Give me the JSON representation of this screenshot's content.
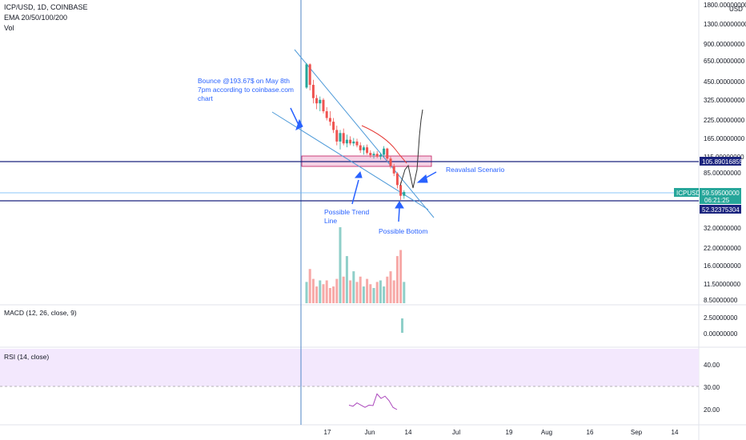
{
  "header": {
    "symbol_line": "ICP/USD, 1D, COINBASE",
    "ema_line": "EMA 20/50/100/200",
    "vol_line": "Vol"
  },
  "colors": {
    "up": "#26a69a",
    "down": "#ef5350",
    "vol_up": "#8fcfc9",
    "vol_down": "#f7a9a7",
    "annotation": "#2962ff",
    "ema": "#e53935",
    "rsi_band": "#f3e8fd",
    "rsi_line": "#ab47bc",
    "zone_fill": "#f3c6dd",
    "zone_border": "#c2185b"
  },
  "chart_data": {
    "type": "candlestick",
    "scale": "log",
    "x_ticks": [
      "17",
      "Jun",
      "14",
      "Jul",
      "19",
      "Aug",
      "16",
      "Sep",
      "14"
    ],
    "price_ticks": [
      "1800.00000000",
      "1300.00000000",
      "900.00000000",
      "650.00000000",
      "450.00000000",
      "325.00000000",
      "225.00000000",
      "165.00000000",
      "115.00000000",
      "85.00000000",
      "32.00000000",
      "22.00000000",
      "16.00000000",
      "11.50000000",
      "8.50000000",
      "2.50000000",
      "0.00000000"
    ],
    "candles": [
      {
        "o": 400,
        "h": 625,
        "l": 390,
        "c": 610
      },
      {
        "o": 610,
        "h": 620,
        "l": 380,
        "c": 420
      },
      {
        "o": 420,
        "h": 460,
        "l": 300,
        "c": 330
      },
      {
        "o": 330,
        "h": 350,
        "l": 270,
        "c": 300
      },
      {
        "o": 300,
        "h": 340,
        "l": 260,
        "c": 320
      },
      {
        "o": 320,
        "h": 330,
        "l": 250,
        "c": 260
      },
      {
        "o": 260,
        "h": 280,
        "l": 220,
        "c": 230
      },
      {
        "o": 230,
        "h": 260,
        "l": 200,
        "c": 215
      },
      {
        "o": 215,
        "h": 230,
        "l": 175,
        "c": 185
      },
      {
        "o": 185,
        "h": 200,
        "l": 140,
        "c": 150
      },
      {
        "o": 150,
        "h": 185,
        "l": 130,
        "c": 175
      },
      {
        "o": 175,
        "h": 190,
        "l": 140,
        "c": 145
      },
      {
        "o": 145,
        "h": 170,
        "l": 135,
        "c": 155
      },
      {
        "o": 155,
        "h": 165,
        "l": 140,
        "c": 145
      },
      {
        "o": 145,
        "h": 160,
        "l": 138,
        "c": 150
      },
      {
        "o": 150,
        "h": 158,
        "l": 135,
        "c": 140
      },
      {
        "o": 140,
        "h": 148,
        "l": 122,
        "c": 128
      },
      {
        "o": 128,
        "h": 140,
        "l": 118,
        "c": 135
      },
      {
        "o": 135,
        "h": 142,
        "l": 118,
        "c": 122
      },
      {
        "o": 122,
        "h": 128,
        "l": 112,
        "c": 117
      },
      {
        "o": 117,
        "h": 125,
        "l": 110,
        "c": 120
      },
      {
        "o": 120,
        "h": 126,
        "l": 111,
        "c": 114
      },
      {
        "o": 114,
        "h": 122,
        "l": 108,
        "c": 118
      },
      {
        "o": 118,
        "h": 138,
        "l": 112,
        "c": 132
      },
      {
        "o": 132,
        "h": 134,
        "l": 105,
        "c": 110
      },
      {
        "o": 110,
        "h": 114,
        "l": 92,
        "c": 96
      },
      {
        "o": 96,
        "h": 100,
        "l": 80,
        "c": 84
      },
      {
        "o": 84,
        "h": 86,
        "l": 64,
        "c": 68
      },
      {
        "o": 68,
        "h": 72,
        "l": 52,
        "c": 56
      },
      {
        "o": 56,
        "h": 62,
        "l": 53,
        "c": 60
      }
    ],
    "volume_heights": [
      0.28,
      0.45,
      0.32,
      0.22,
      0.3,
      0.25,
      0.3,
      0.2,
      0.22,
      0.32,
      1.0,
      0.35,
      0.62,
      0.3,
      0.42,
      0.28,
      0.35,
      0.22,
      0.32,
      0.25,
      0.2,
      0.28,
      0.3,
      0.22,
      0.35,
      0.42,
      0.3,
      0.62,
      0.7,
      0.28
    ],
    "current_price": "59.59500000",
    "current_symbol": "ICPUSD",
    "countdown": "06:21:25",
    "level_upper": "105.89016855",
    "level_lower": "52.32375304",
    "macd_title": "MACD (12, 26, close, 9)",
    "macd_ticks": [
      "2.50000000",
      "0.00000000"
    ],
    "rsi_title": "RSI (14, close)",
    "rsi_ticks": [
      "40.00",
      "30.00",
      "20.00"
    ],
    "rsi_values": [
      22,
      21.5,
      23,
      22,
      21,
      22,
      21.8,
      27,
      25,
      26,
      24,
      21,
      20
    ]
  },
  "annotations": {
    "bounce": [
      "Bounce @193.67$ on May 8th",
      "7pm according to coinbase.com",
      "chart"
    ],
    "trend": [
      "Possible Trend",
      "Line"
    ],
    "bottom": "Possible Bottom",
    "reversal": "Reavalsal Scenario"
  },
  "price_scale": {
    "currency": "USD"
  }
}
